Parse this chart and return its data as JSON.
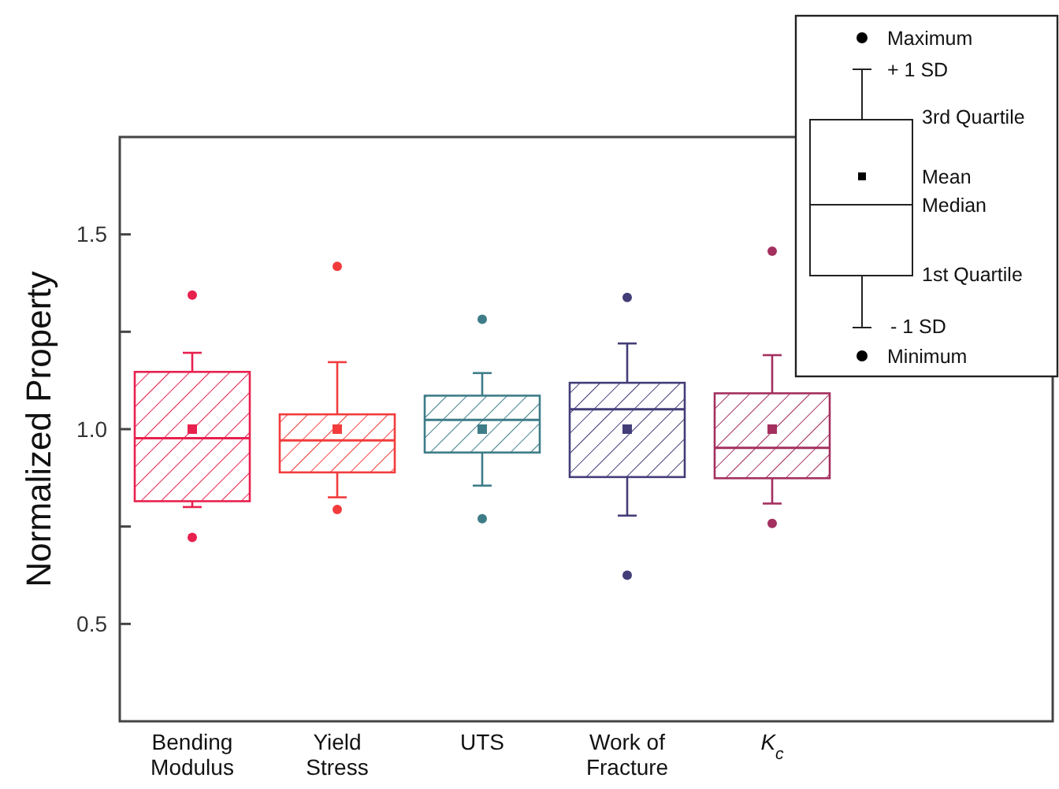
{
  "chart_data": {
    "type": "box",
    "ylabel": "Normalized Property",
    "categories": [
      "Bending Modulus",
      "Yield Stress",
      "UTS",
      "Work of Fracture",
      "K$_{c}$"
    ],
    "colors": [
      "#e8204e",
      "#f23c3c",
      "#3e7c88",
      "#433d78",
      "#a3305f"
    ],
    "boxes": [
      {
        "low": 0.8,
        "q1": 0.815,
        "median": 0.977,
        "q3": 1.147,
        "high": 1.196,
        "mean": 1.0,
        "outliers": [
          0.722,
          1.344
        ]
      },
      {
        "low": 0.825,
        "q1": 0.889,
        "median": 0.971,
        "q3": 1.038,
        "high": 1.172,
        "mean": 1.0,
        "outliers": [
          0.794,
          1.418
        ]
      },
      {
        "low": 0.855,
        "q1": 0.94,
        "median": 1.024,
        "q3": 1.086,
        "high": 1.144,
        "mean": 1.0,
        "outliers": [
          0.77,
          1.282
        ]
      },
      {
        "low": 0.778,
        "q1": 0.877,
        "median": 1.051,
        "q3": 1.119,
        "high": 1.22,
        "mean": 1.0,
        "outliers": [
          0.625,
          1.338
        ]
      },
      {
        "low": 0.809,
        "q1": 0.874,
        "median": 0.952,
        "q3": 1.092,
        "high": 1.19,
        "mean": 1.0,
        "outliers": [
          0.758,
          1.457
        ]
      }
    ],
    "ylim": [
      0.25,
      1.75
    ],
    "yticks": [
      {
        "value": 0.5,
        "label": "0.5"
      },
      {
        "value": 0.75,
        "label": null
      },
      {
        "value": 1.0,
        "label": "1.0"
      },
      {
        "value": 1.25,
        "label": null
      },
      {
        "value": 1.5,
        "label": "1.5"
      }
    ],
    "annotations": [
      "Maximum",
      "+ 1 SD",
      "3rd Quartile",
      "Mean",
      "Median",
      "1st Quartile",
      "- 1 SD",
      "Minimum"
    ]
  }
}
